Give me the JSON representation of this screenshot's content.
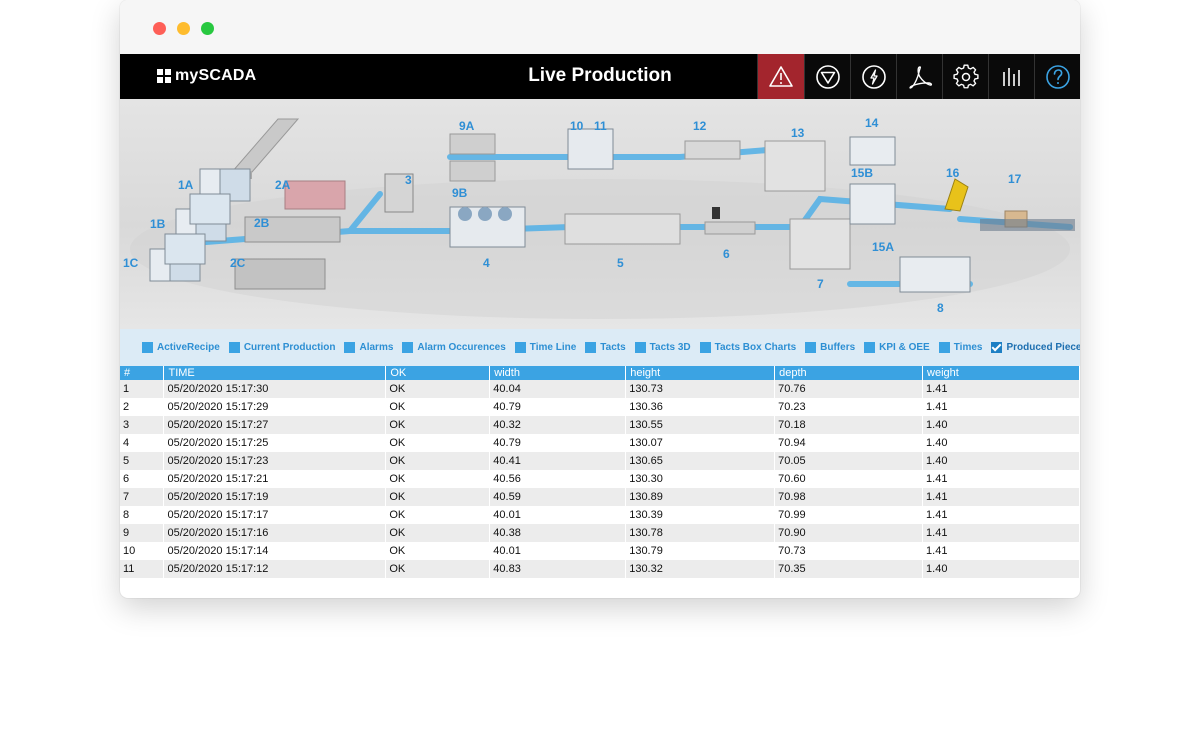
{
  "app": {
    "brand": "mySCADA",
    "title": "Live Production"
  },
  "toolbar": [
    {
      "name": "alarm-icon",
      "active": true
    },
    {
      "name": "stop-icon"
    },
    {
      "name": "power-icon"
    },
    {
      "name": "pdf-icon"
    },
    {
      "name": "settings-icon"
    },
    {
      "name": "chart-icon"
    },
    {
      "name": "help-icon"
    }
  ],
  "scene": {
    "labels": [
      "1A",
      "1B",
      "1C",
      "2A",
      "2B",
      "2C",
      "3",
      "4",
      "5",
      "6",
      "7",
      "8",
      "9A",
      "9B",
      "10",
      "11",
      "12",
      "13",
      "14",
      "15A",
      "15B",
      "16",
      "17"
    ]
  },
  "tabs": [
    {
      "label": "ActiveRecipe"
    },
    {
      "label": "Current Production"
    },
    {
      "label": "Alarms"
    },
    {
      "label": "Alarm Occurences"
    },
    {
      "label": "Time Line"
    },
    {
      "label": "Tacts"
    },
    {
      "label": "Tacts 3D"
    },
    {
      "label": "Tacts Box Charts"
    },
    {
      "label": "Buffers"
    },
    {
      "label": "KPI & OEE"
    },
    {
      "label": "Times"
    },
    {
      "label": "Produced Pieces",
      "checked": true
    }
  ],
  "table": {
    "columns": [
      "#",
      "TIME",
      "OK",
      "width",
      "height",
      "depth",
      "weight"
    ],
    "rows": [
      [
        "1",
        "05/20/2020 15:17:30",
        "OK",
        "40.04",
        "130.73",
        "70.76",
        "1.41"
      ],
      [
        "2",
        "05/20/2020 15:17:29",
        "OK",
        "40.79",
        "130.36",
        "70.23",
        "1.41"
      ],
      [
        "3",
        "05/20/2020 15:17:27",
        "OK",
        "40.32",
        "130.55",
        "70.18",
        "1.40"
      ],
      [
        "4",
        "05/20/2020 15:17:25",
        "OK",
        "40.79",
        "130.07",
        "70.94",
        "1.40"
      ],
      [
        "5",
        "05/20/2020 15:17:23",
        "OK",
        "40.41",
        "130.65",
        "70.05",
        "1.40"
      ],
      [
        "6",
        "05/20/2020 15:17:21",
        "OK",
        "40.56",
        "130.30",
        "70.60",
        "1.41"
      ],
      [
        "7",
        "05/20/2020 15:17:19",
        "OK",
        "40.59",
        "130.89",
        "70.98",
        "1.41"
      ],
      [
        "8",
        "05/20/2020 15:17:17",
        "OK",
        "40.01",
        "130.39",
        "70.99",
        "1.41"
      ],
      [
        "9",
        "05/20/2020 15:17:16",
        "OK",
        "40.38",
        "130.78",
        "70.90",
        "1.41"
      ],
      [
        "10",
        "05/20/2020 15:17:14",
        "OK",
        "40.01",
        "130.79",
        "70.73",
        "1.41"
      ],
      [
        "11",
        "05/20/2020 15:17:12",
        "OK",
        "40.83",
        "130.32",
        "70.35",
        "1.40"
      ]
    ]
  },
  "colors": {
    "accent": "#3ba3e3",
    "alarm": "#a3252d",
    "header": "#000000"
  }
}
